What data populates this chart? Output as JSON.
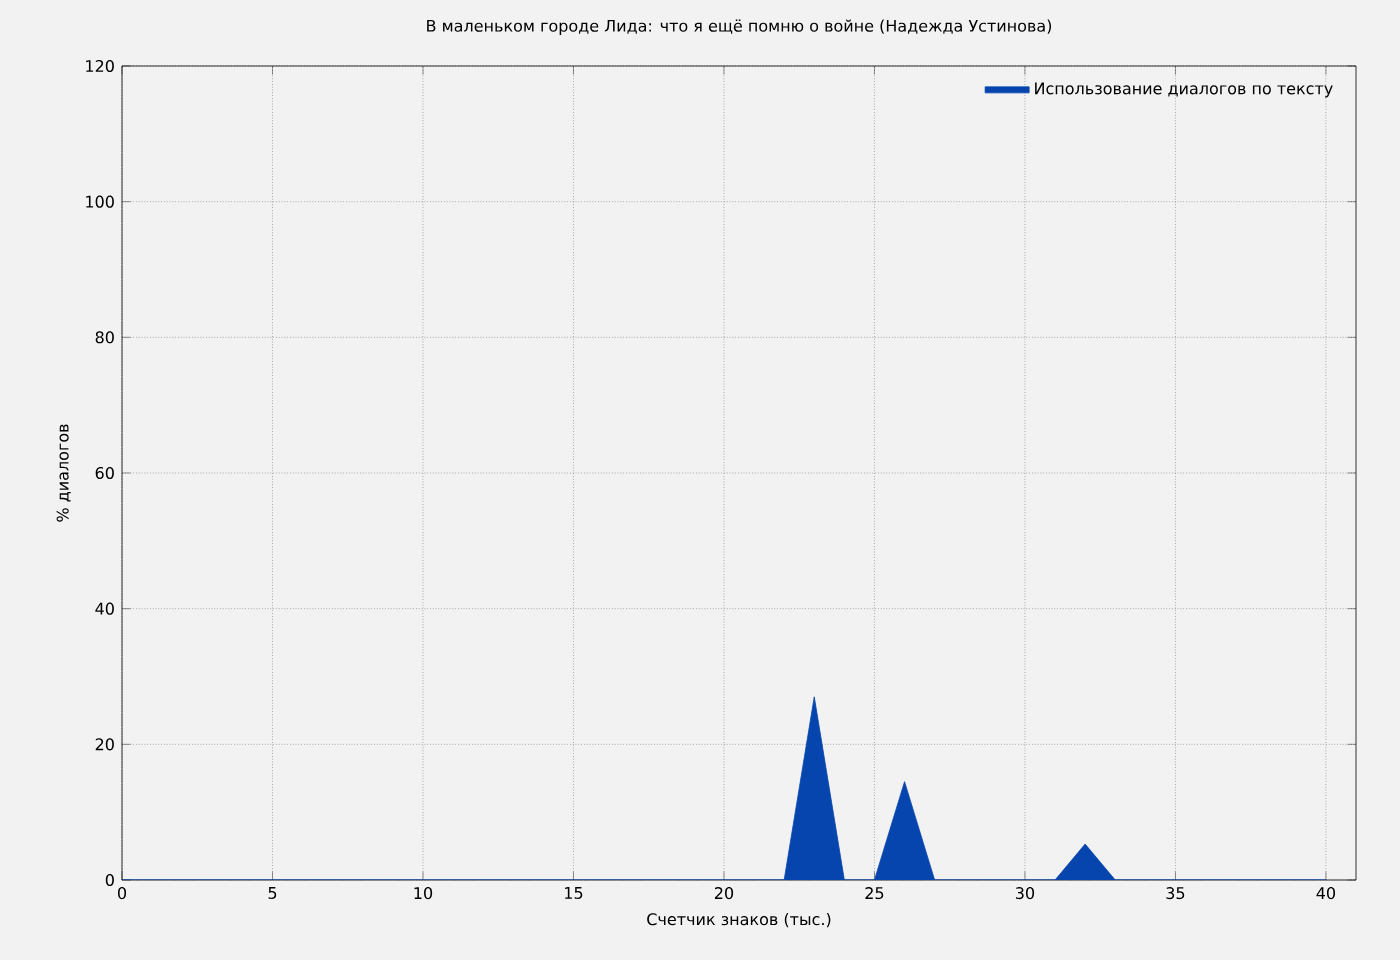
{
  "chart_data": {
    "type": "area",
    "title": "В маленьком городе Лида: что я ещё помню о войне (Надежда Устинова)",
    "xlabel": "Счетчик знаков (тыс.)",
    "ylabel": "% диалогов",
    "x": [
      0,
      1,
      2,
      3,
      4,
      5,
      6,
      7,
      8,
      9,
      10,
      11,
      12,
      13,
      14,
      15,
      16,
      17,
      18,
      19,
      20,
      21,
      22,
      23,
      24,
      25,
      26,
      27,
      28,
      29,
      30,
      31,
      32,
      33,
      34,
      35,
      36,
      37,
      38,
      39,
      40
    ],
    "series": [
      {
        "name": "Использование диалогов по тексту",
        "color": "#0645ad",
        "values": [
          0,
          0,
          0,
          0,
          0,
          0,
          0,
          0,
          0,
          0,
          0,
          0,
          0,
          0,
          0,
          0,
          0,
          0,
          0,
          0,
          0,
          0,
          0,
          27,
          0,
          0,
          14.5,
          0,
          0,
          0,
          0,
          0,
          5.3,
          0,
          0,
          0,
          0,
          0,
          0,
          0,
          0
        ]
      }
    ],
    "xlim": [
      0,
      41
    ],
    "ylim": [
      0,
      120
    ],
    "xticks": [
      0,
      5,
      10,
      15,
      20,
      25,
      30,
      35,
      40
    ],
    "yticks": [
      0,
      20,
      40,
      60,
      80,
      100,
      120
    ],
    "grid": true,
    "legend": "top right"
  }
}
